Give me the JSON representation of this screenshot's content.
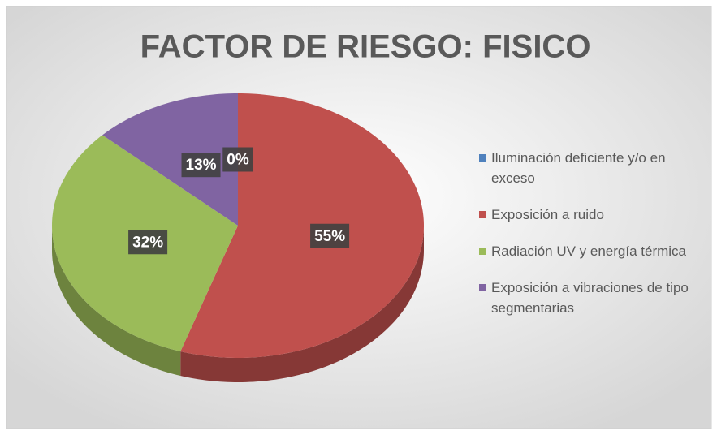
{
  "chart_data": {
    "type": "pie",
    "title": "FACTOR DE RIESGO: FISICO",
    "categories": [
      "Iluminación deficiente y/o en exceso",
      "Exposición a ruido",
      "Radiación UV y energía térmica",
      "Exposición a vibraciones de tipo segmentarias"
    ],
    "values": [
      0,
      55,
      32,
      13
    ],
    "value_labels": [
      "0%",
      "55%",
      "32%",
      "13%"
    ],
    "colors": [
      "#4f81bd",
      "#c0504d",
      "#9bbb59",
      "#8064a2"
    ],
    "legend": "right"
  }
}
